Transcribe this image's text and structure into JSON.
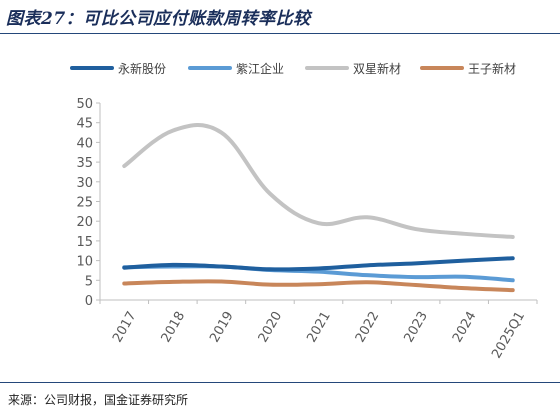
{
  "title": "图表27：可比公司应付账款周转率比较",
  "source": "来源：公司财报，国金证券研究所",
  "chart_data": {
    "type": "line",
    "title": "图表27：可比公司应付账款周转率比较",
    "xlabel": "",
    "ylabel": "",
    "categories": [
      "2017",
      "2018",
      "2019",
      "2020",
      "2021",
      "2022",
      "2023",
      "2024",
      "2025Q1"
    ],
    "ylim": [
      0,
      50
    ],
    "yticks": [
      0,
      5,
      10,
      15,
      20,
      25,
      30,
      35,
      40,
      45,
      50
    ],
    "grid": false,
    "legend": "top",
    "series": [
      {
        "name": "永新股份",
        "color": "#1f5f9e",
        "values": [
          8.2,
          8.9,
          8.5,
          7.8,
          8.0,
          8.8,
          9.3,
          10.0,
          10.6
        ]
      },
      {
        "name": "紫江企业",
        "color": "#5b9bd5",
        "values": [
          8.3,
          8.5,
          8.5,
          7.6,
          7.2,
          6.3,
          5.8,
          5.9,
          5.0
        ]
      },
      {
        "name": "双星新材",
        "color": "#c3c3c3",
        "values": [
          34.0,
          43.0,
          42.5,
          27.0,
          19.5,
          21.0,
          18.0,
          16.8,
          16.0
        ]
      },
      {
        "name": "王子新材",
        "color": "#c8865a",
        "values": [
          4.2,
          4.6,
          4.7,
          3.9,
          4.0,
          4.5,
          3.8,
          3.0,
          2.5
        ]
      }
    ]
  }
}
